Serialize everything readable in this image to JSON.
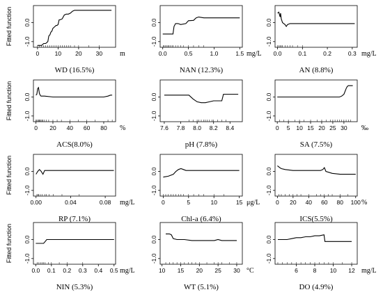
{
  "chart_data": [
    {
      "id": "wd",
      "type": "line",
      "title": "WD (16.5%)",
      "unit": "m",
      "ylabel": "Fitted function",
      "xlim": [
        -2,
        38
      ],
      "xticks": [
        0,
        10,
        20,
        30
      ],
      "ylim": [
        -1.3,
        0.9
      ],
      "yticks": [
        -1.0,
        0.0
      ],
      "x": [
        0,
        2,
        3,
        4,
        5,
        5.5,
        6,
        6.5,
        7,
        7.5,
        8,
        8.5,
        9,
        9.5,
        10,
        10.5,
        11,
        12,
        13,
        14,
        15,
        16,
        17,
        18,
        36
      ],
      "y": [
        -1.2,
        -1.2,
        -1.1,
        -1.1,
        -1.0,
        -0.7,
        -0.65,
        -0.5,
        -0.45,
        -0.3,
        -0.25,
        -0.2,
        -0.15,
        -0.15,
        -0.1,
        0.15,
        0.15,
        0.2,
        0.4,
        0.45,
        0.45,
        0.5,
        0.6,
        0.65,
        0.65
      ],
      "rug": [
        0,
        1,
        2,
        3,
        4,
        5,
        6,
        7,
        8,
        9,
        10,
        11,
        12,
        13,
        14,
        15,
        16,
        18,
        20,
        25,
        30
      ]
    },
    {
      "id": "nan",
      "type": "line",
      "title": "NAN (12.3%)",
      "unit": "mg/L",
      "ylabel": "",
      "xlim": [
        -0.05,
        1.55
      ],
      "xticks": [
        0.0,
        0.5,
        1.0,
        1.5
      ],
      "ylim": [
        -1.3,
        0.9
      ],
      "yticks": [
        -1.0,
        0.0
      ],
      "x": [
        0,
        0.1,
        0.2,
        0.22,
        0.25,
        0.3,
        0.35,
        0.45,
        0.5,
        0.6,
        0.65,
        0.7,
        0.8,
        1.5
      ],
      "y": [
        -0.6,
        -0.6,
        -0.6,
        -0.2,
        -0.05,
        -0.05,
        -0.1,
        -0.05,
        0.1,
        0.12,
        0.25,
        0.3,
        0.25,
        0.25
      ],
      "rug": [
        0.01,
        0.03,
        0.05,
        0.08,
        0.1,
        0.12,
        0.15,
        0.18,
        0.2,
        0.25,
        0.3,
        0.35,
        0.4,
        0.5,
        0.6,
        0.7,
        0.8
      ]
    },
    {
      "id": "an",
      "type": "line",
      "title": "AN (8.8%)",
      "unit": "mg/L",
      "ylabel": "",
      "xlim": [
        -0.01,
        0.32
      ],
      "xticks": [
        0.0,
        0.1,
        0.2,
        0.3
      ],
      "ylim": [
        -1.3,
        0.9
      ],
      "yticks": [
        -1.0,
        0.0
      ],
      "x": [
        0,
        0.005,
        0.01,
        0.012,
        0.015,
        0.02,
        0.025,
        0.03,
        0.035,
        0.04,
        0.05,
        0.06,
        0.08,
        0.31
      ],
      "y": [
        0.5,
        0.55,
        0.3,
        0.5,
        0.2,
        0.0,
        -0.05,
        -0.1,
        -0.2,
        -0.1,
        -0.05,
        -0.05,
        -0.05,
        -0.05
      ],
      "rug": [
        0.0,
        0.005,
        0.01,
        0.015,
        0.02,
        0.03,
        0.04,
        0.05,
        0.06,
        0.08,
        0.1
      ]
    },
    {
      "id": "acs",
      "type": "line",
      "title": "ACS(8.0%)",
      "unit": "%",
      "ylabel": "Fitted function",
      "xlim": [
        -3,
        94
      ],
      "xticks": [
        0,
        20,
        40,
        60,
        80
      ],
      "ylim": [
        -1.3,
        0.9
      ],
      "yticks": [
        -1.0,
        0.0
      ],
      "x": [
        0,
        1,
        2,
        3,
        4,
        5,
        6,
        8,
        10,
        20,
        40,
        60,
        80,
        85,
        88,
        90
      ],
      "y": [
        0.1,
        0.15,
        0.45,
        0.5,
        0.2,
        0.1,
        0.05,
        0.05,
        0.05,
        0.0,
        0.0,
        0.0,
        0.0,
        0.05,
        0.1,
        0.1
      ],
      "rug": [
        0,
        1,
        2,
        3,
        4,
        5,
        6,
        7,
        8,
        10,
        12,
        15,
        20,
        25,
        30,
        40,
        50,
        60,
        70,
        85,
        90
      ]
    },
    {
      "id": "ph",
      "type": "line",
      "title": "pH (7.8%)",
      "unit": "",
      "ylabel": "",
      "xlim": [
        7.55,
        8.55
      ],
      "xticks": [
        7.6,
        7.8,
        8.0,
        8.2,
        8.4
      ],
      "ylim": [
        -1.3,
        0.9
      ],
      "yticks": [
        -1.0,
        0.0
      ],
      "x": [
        7.6,
        7.9,
        7.95,
        8.0,
        8.05,
        8.1,
        8.15,
        8.2,
        8.25,
        8.3,
        8.32,
        8.35,
        8.5
      ],
      "y": [
        0.1,
        0.1,
        -0.1,
        -0.25,
        -0.3,
        -0.3,
        -0.25,
        -0.2,
        -0.2,
        -0.2,
        0.15,
        0.15,
        0.15
      ],
      "rug": [
        7.9,
        7.95,
        8.0,
        8.02,
        8.05,
        8.08,
        8.1,
        8.12,
        8.15,
        8.18,
        8.2,
        8.25,
        8.3,
        8.35
      ]
    },
    {
      "id": "sa",
      "type": "line",
      "title": "SA (7.5%)",
      "unit": "‰",
      "ylabel": "",
      "xlim": [
        -1,
        36
      ],
      "xticks": [
        0,
        5,
        10,
        15,
        20,
        25,
        30
      ],
      "ylim": [
        -1.3,
        0.9
      ],
      "yticks": [
        -1.0,
        0.0
      ],
      "x": [
        0,
        25,
        28,
        29,
        30,
        30.5,
        31,
        31.5,
        32,
        33,
        34
      ],
      "y": [
        0.0,
        0.0,
        0.0,
        0.05,
        0.15,
        0.3,
        0.45,
        0.55,
        0.6,
        0.6,
        0.6
      ],
      "rug": [
        1,
        3,
        5,
        8,
        10,
        12,
        15,
        18,
        20,
        22,
        24,
        25,
        26,
        27,
        28,
        29,
        30,
        31,
        32,
        33
      ]
    },
    {
      "id": "rp",
      "type": "line",
      "title": "RP (7.1%)",
      "unit": "mg/L",
      "ylabel": "Fitted function",
      "xlim": [
        -0.003,
        0.092
      ],
      "xticks": [
        0.0,
        0.04,
        0.08
      ],
      "ylim": [
        -1.3,
        0.9
      ],
      "yticks": [
        -1.0,
        0.0
      ],
      "x": [
        0,
        0.002,
        0.004,
        0.006,
        0.008,
        0.01,
        0.012,
        0.015,
        0.02,
        0.09
      ],
      "y": [
        -0.15,
        0.0,
        0.1,
        0.0,
        -0.15,
        0.05,
        0.05,
        0.05,
        0.05,
        0.05
      ],
      "rug": [
        0.001,
        0.002,
        0.003,
        0.005,
        0.007,
        0.01,
        0.012,
        0.015,
        0.02,
        0.03,
        0.05
      ]
    },
    {
      "id": "chla",
      "type": "line",
      "title": "Chl-a (6.4%)",
      "unit": "μg/L",
      "ylabel": "",
      "xlim": [
        -0.6,
        15.6
      ],
      "xticks": [
        0,
        5,
        10,
        15
      ],
      "ylim": [
        -1.3,
        0.9
      ],
      "yticks": [
        -1.0,
        0.0
      ],
      "x": [
        0,
        1,
        2,
        2.5,
        3,
        3.5,
        4,
        4.5,
        5,
        6,
        8,
        10,
        15
      ],
      "y": [
        -0.3,
        -0.25,
        -0.15,
        0.0,
        0.1,
        0.15,
        0.1,
        0.05,
        0.05,
        0.05,
        0.05,
        0.05,
        0.05
      ],
      "rug": [
        0,
        0.5,
        1,
        1.5,
        2,
        2.5,
        3,
        3.5,
        4,
        5,
        6,
        7,
        8,
        10,
        12
      ]
    },
    {
      "id": "ics",
      "type": "line",
      "title": "ICS(5.5%)",
      "unit": "%",
      "ylabel": "",
      "xlim": [
        -3,
        102
      ],
      "xticks": [
        0,
        20,
        40,
        60,
        80,
        100
      ],
      "ylim": [
        -1.3,
        0.9
      ],
      "yticks": [
        -1.0,
        0.0
      ],
      "x": [
        0,
        3,
        5,
        10,
        20,
        40,
        55,
        58,
        60,
        62,
        70,
        80,
        90,
        100
      ],
      "y": [
        0.3,
        0.2,
        0.15,
        0.1,
        0.05,
        0.05,
        0.05,
        0.1,
        0.2,
        0.0,
        -0.1,
        -0.15,
        -0.15,
        -0.15
      ],
      "rug": [
        2,
        5,
        10,
        15,
        20,
        25,
        30,
        40,
        50,
        55,
        60,
        65,
        70,
        80,
        90
      ]
    },
    {
      "id": "nin",
      "type": "line",
      "title": "NIN (5.3%)",
      "unit": "mg/L",
      "ylabel": "Fitted function",
      "xlim": [
        -0.015,
        0.51
      ],
      "xticks": [
        0.0,
        0.1,
        0.2,
        0.3,
        0.4,
        0.5
      ],
      "ylim": [
        -1.3,
        0.9
      ],
      "yticks": [
        -1.0,
        0.0
      ],
      "x": [
        0,
        0.05,
        0.06,
        0.07,
        0.08,
        0.1,
        0.5
      ],
      "y": [
        -0.2,
        -0.2,
        -0.1,
        0.0,
        0.0,
        0.0,
        0.0
      ],
      "rug": [
        0.01,
        0.02,
        0.03,
        0.04,
        0.05,
        0.06,
        0.08,
        0.1,
        0.15,
        0.2,
        0.3
      ]
    },
    {
      "id": "wt",
      "type": "line",
      "title": "WT (5.1%)",
      "unit": "°C",
      "ylabel": "",
      "xlim": [
        9.5,
        31.5
      ],
      "xticks": [
        10,
        15,
        20,
        25,
        30
      ],
      "ylim": [
        -1.3,
        0.9
      ],
      "yticks": [
        -1.0,
        0.0
      ],
      "x": [
        11,
        12,
        12.5,
        13,
        14,
        16,
        18,
        20,
        22,
        24,
        25,
        26,
        28,
        30
      ],
      "y": [
        0.3,
        0.3,
        0.25,
        0.05,
        0.0,
        0.0,
        -0.05,
        -0.05,
        -0.05,
        -0.05,
        0.0,
        -0.05,
        -0.05,
        -0.05
      ],
      "rug": [
        11,
        12,
        13,
        14,
        15,
        16,
        17,
        18,
        19,
        20,
        22,
        24,
        25,
        26,
        28,
        30
      ]
    },
    {
      "id": "do",
      "type": "line",
      "title": "DO (4.9%)",
      "unit": "mg/L",
      "ylabel": "",
      "xlim": [
        3.7,
        12.6
      ],
      "xticks": [
        6,
        8,
        10,
        12
      ],
      "ylim": [
        -1.3,
        0.9
      ],
      "yticks": [
        -1.0,
        0.0
      ],
      "x": [
        4,
        5,
        5.5,
        6,
        6.5,
        7,
        7.5,
        8,
        8.5,
        9,
        9.1,
        10,
        12
      ],
      "y": [
        0.0,
        0.0,
        0.05,
        0.1,
        0.1,
        0.15,
        0.15,
        0.2,
        0.2,
        0.25,
        -0.1,
        -0.1,
        -0.1
      ],
      "rug": [
        4,
        4.5,
        5,
        5.5,
        6,
        6.5,
        7,
        7.5,
        8,
        8.5,
        9,
        9.5,
        10,
        11,
        12
      ]
    }
  ]
}
